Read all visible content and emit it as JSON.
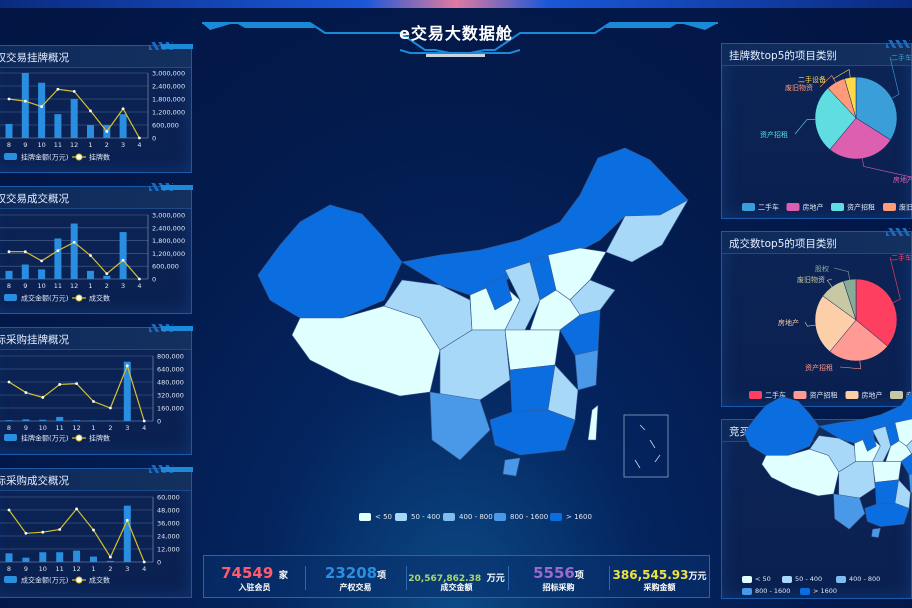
{
  "header": {
    "title": "e交易大数据舱"
  },
  "left_panels": [
    {
      "title": "产权交易挂牌概况"
    },
    {
      "title": "产权交易成交概况"
    },
    {
      "title": "招标采购挂牌概况"
    },
    {
      "title": "招标采购成交概况"
    }
  ],
  "chart_data": [
    {
      "type": "bar",
      "categories": [
        "8",
        "9",
        "10",
        "11",
        "12",
        "1",
        "2",
        "3",
        "4"
      ],
      "ylim": [
        0,
        3000000
      ],
      "yticks": [
        "0",
        "600,000",
        "1,200,000",
        "1,800,000",
        "2,400,000",
        "3,000,000"
      ],
      "series": [
        {
          "name": "挂牌金额(万元)",
          "type": "bar",
          "color": "#2a8ee0",
          "values": [
            650000,
            3000000,
            2550000,
            1100000,
            1800000,
            600000,
            600000,
            1100000,
            0
          ]
        },
        {
          "name": "挂牌数",
          "type": "line",
          "color": "#d8c22a",
          "values": [
            1800000,
            1700000,
            1450000,
            2250000,
            2150000,
            1250000,
            300000,
            1350000,
            0
          ]
        }
      ]
    },
    {
      "type": "bar",
      "categories": [
        "8",
        "9",
        "10",
        "11",
        "12",
        "1",
        "2",
        "3",
        "4"
      ],
      "ylim": [
        0,
        3000000
      ],
      "yticks": [
        "0",
        "600,000",
        "1,200,000",
        "1,800,000",
        "2,400,000",
        "3,000,000"
      ],
      "series": [
        {
          "name": "成交金额(万元)",
          "type": "bar",
          "color": "#2a8ee0",
          "values": [
            380000,
            680000,
            450000,
            1900000,
            2600000,
            380000,
            150000,
            2200000,
            0
          ]
        },
        {
          "name": "成交数",
          "type": "line",
          "color": "#d8c22a",
          "values": [
            1280000,
            1280000,
            850000,
            1330000,
            1720000,
            1100000,
            250000,
            880000,
            0
          ]
        }
      ]
    },
    {
      "type": "bar",
      "categories": [
        "8",
        "9",
        "10",
        "11",
        "12",
        "1",
        "2",
        "3",
        "4"
      ],
      "ylim": [
        0,
        800000
      ],
      "yticks": [
        "0",
        "160,000",
        "320,000",
        "480,000",
        "640,000",
        "800,000"
      ],
      "series": [
        {
          "name": "挂牌金额(万元)",
          "type": "bar",
          "color": "#2a8ee0",
          "values": [
            10000,
            20000,
            15000,
            50000,
            10000,
            6000,
            5000,
            730000,
            0
          ]
        },
        {
          "name": "挂牌数",
          "type": "line",
          "color": "#d8c22a",
          "values": [
            480000,
            350000,
            290000,
            450000,
            460000,
            240000,
            160000,
            680000,
            0
          ]
        }
      ]
    },
    {
      "type": "bar",
      "categories": [
        "8",
        "9",
        "10",
        "11",
        "12",
        "1",
        "2",
        "3",
        "4"
      ],
      "ylim": [
        0,
        60000
      ],
      "yticks": [
        "0",
        "12,000",
        "24,000",
        "36,000",
        "48,000",
        "60,000"
      ],
      "series": [
        {
          "name": "成交金额(万元)",
          "type": "bar",
          "color": "#2a8ee0",
          "values": [
            8000,
            4000,
            9000,
            9000,
            10500,
            5000,
            1000,
            52000,
            0
          ]
        },
        {
          "name": "成交数",
          "type": "line",
          "color": "#d8c22a",
          "values": [
            48000,
            26500,
            27500,
            30000,
            49000,
            29500,
            4500,
            38500,
            0
          ]
        }
      ]
    },
    {
      "type": "pie",
      "title": "挂牌数top5的项目类别",
      "slices": [
        {
          "name": "二手车",
          "value": 34,
          "color": "#3a9ed8"
        },
        {
          "name": "房地产",
          "value": 27,
          "color": "#dd5fb0"
        },
        {
          "name": "资产招租",
          "value": 27,
          "color": "#5fdde0"
        },
        {
          "name": "废旧物资",
          "value": 7.5,
          "color": "#ff9a7a"
        },
        {
          "name": "二手设备",
          "value": 4.5,
          "color": "#ffd84a"
        }
      ]
    },
    {
      "type": "pie",
      "title": "成交数top5的项目类别",
      "slices": [
        {
          "name": "二手车",
          "value": 36,
          "color": "#ff3f5f"
        },
        {
          "name": "资产招租",
          "value": 25,
          "color": "#ff9a94"
        },
        {
          "name": "房地产",
          "value": 24,
          "color": "#fccfa8"
        },
        {
          "name": "废旧物资",
          "value": 10,
          "color": "#c8c8a5"
        },
        {
          "name": "股权",
          "value": 5,
          "color": "#86ac98"
        }
      ]
    }
  ],
  "right_panels": {
    "pie1_title": "挂牌数top5的项目类别",
    "pie2_title": "成交数top5的项目类别",
    "map_title": "竞买人数量分布"
  },
  "map_legend": [
    {
      "label": "< 50",
      "color": "#e0ffff"
    },
    {
      "label": "50 - 400",
      "color": "#a8d8f8"
    },
    {
      "label": "400 - 800",
      "color": "#80bcf0"
    },
    {
      "label": "800 - 1600",
      "color": "#4a98e8"
    },
    {
      "label": "> 1600",
      "color": "#0a6ee0"
    }
  ],
  "stats": [
    {
      "value": "74549",
      "unit": "家",
      "label": "入驻会员",
      "color": "#ff5a6e"
    },
    {
      "value": "23208",
      "unit": "项",
      "label": "产权交易",
      "color": "#2a8ee0"
    },
    {
      "value": "20,567,862.38",
      "unit": "万元",
      "label": "成交金额",
      "color": "#a8d870"
    },
    {
      "value": "5556",
      "unit": "项",
      "label": "招标采购",
      "color": "#9a6ad0"
    },
    {
      "value": "386,545.93",
      "unit": "万元",
      "label": "采购金额",
      "color": "#f0e040"
    }
  ]
}
